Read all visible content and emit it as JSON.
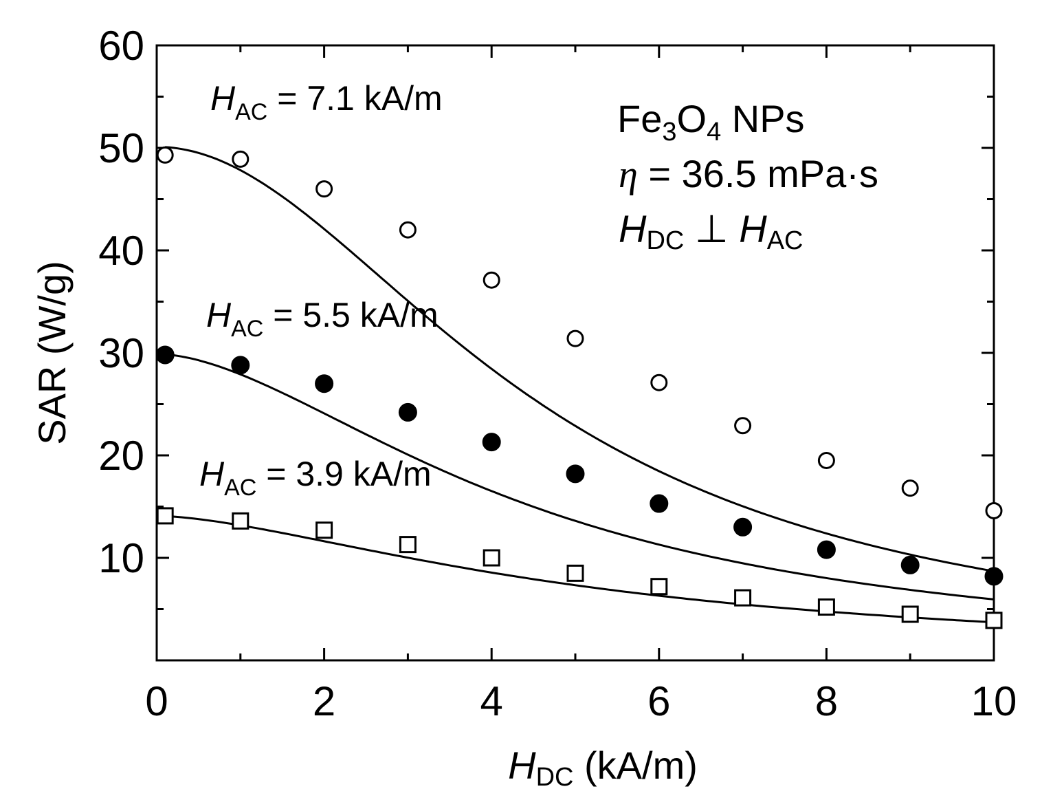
{
  "chart_data": {
    "type": "line",
    "title": "",
    "xlabel": {
      "main": "H",
      "sub": "DC",
      "unit": " (kA/m)"
    },
    "ylabel": "SAR (W/g)",
    "xlim": [
      0,
      10
    ],
    "ylim": [
      0,
      60
    ],
    "xticks": [
      0,
      2,
      4,
      6,
      8,
      10
    ],
    "xtick_labels": [
      "0",
      "2",
      "4",
      "6",
      "8",
      "10"
    ],
    "yticks": [
      10,
      20,
      30,
      40,
      50,
      60
    ],
    "ytick_labels": [
      "10",
      "20",
      "30",
      "40",
      "50",
      "60"
    ],
    "grid": false,
    "annotations": {
      "sample": {
        "base": "Fe",
        "sub1": "3",
        "mid": "O",
        "sub2": "4",
        "rest": " NPs"
      },
      "viscosity": {
        "symbol": "η",
        "text": " = 36.5 mPa·s"
      },
      "orientation": {
        "h1": "H",
        "s1": "DC",
        "perp": " ⊥ ",
        "h2": "H",
        "s2": "AC"
      }
    },
    "series": [
      {
        "name": "H_AC = 7.1 kA/m",
        "label": {
          "main": "H",
          "sub": "AC",
          "rest": " = 7.1 kA/m"
        },
        "marker": "circle-open",
        "x": [
          0.1,
          1,
          2,
          3,
          4,
          5,
          6,
          7,
          8,
          9,
          10
        ],
        "values": [
          49.3,
          48.9,
          46.0,
          42.0,
          37.1,
          31.4,
          27.1,
          22.9,
          19.5,
          16.8,
          14.6
        ],
        "fit_a": 50.1,
        "fit_b": 0.0476,
        "fit_n": 2.0
      },
      {
        "name": "H_AC = 5.5 kA/m",
        "label": {
          "main": "H",
          "sub": "AC",
          "rest": " = 5.5 kA/m"
        },
        "marker": "circle-filled",
        "x": [
          0.1,
          1,
          2,
          3,
          4,
          5,
          6,
          7,
          8,
          9,
          10
        ],
        "values": [
          29.8,
          28.8,
          27.0,
          24.2,
          21.3,
          18.2,
          15.3,
          13.0,
          10.8,
          9.3,
          8.2
        ],
        "fit_a": 29.9,
        "fit_b": 0.0716,
        "fit_n": 1.75
      },
      {
        "name": "H_AC = 3.9 kA/m",
        "label": {
          "main": "H",
          "sub": "AC",
          "rest": " = 3.9 kA/m"
        },
        "marker": "square-open",
        "x": [
          0.1,
          1,
          2,
          3,
          4,
          5,
          6,
          7,
          8,
          9,
          10
        ],
        "values": [
          14.1,
          13.6,
          12.7,
          11.3,
          10.0,
          8.5,
          7.2,
          6.1,
          5.2,
          4.5,
          3.9
        ],
        "fit_a": 14.1,
        "fit_b": 0.0703,
        "fit_n": 1.6
      }
    ]
  }
}
